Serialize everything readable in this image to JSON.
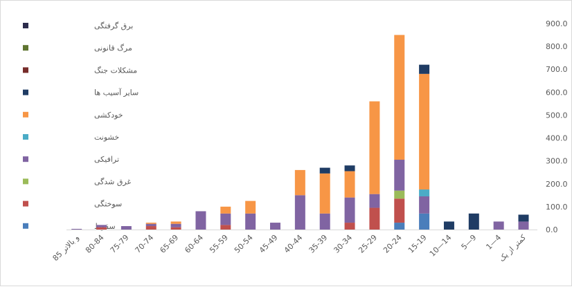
{
  "chart_data": {
    "type": "bar",
    "stacked": true,
    "title": "",
    "xlabel": "",
    "ylabel": "",
    "ylim": [
      0,
      900
    ],
    "y_ticks": [
      "0.0",
      "100.0",
      "200.0",
      "300.0",
      "400.0",
      "500.0",
      "600.0",
      "700.0",
      "800.0",
      "900.0"
    ],
    "grid": false,
    "legend_position": "left",
    "y_axis_side": "right",
    "categories": [
      "کمتر از یک",
      "1—4",
      "5—9",
      "10—14",
      "15-19",
      "20-24",
      "25-29",
      "30-34",
      "35-39",
      "40-44",
      "45-49",
      "50-54",
      "55-59",
      "60-64",
      "65-69",
      "70-74",
      "75-79",
      "80-84",
      "85 و بالاتر"
    ],
    "series": [
      {
        "name": "سقوط",
        "color": "#4a7ebb",
        "values": [
          0,
          0,
          0,
          0,
          70,
          30,
          0,
          0,
          0,
          0,
          0,
          0,
          0,
          0,
          0,
          0,
          0,
          0,
          0
        ]
      },
      {
        "name": "سوختگی",
        "color": "#c0504d",
        "values": [
          0,
          0,
          0,
          0,
          0,
          105,
          95,
          30,
          0,
          0,
          0,
          0,
          20,
          0,
          10,
          15,
          0,
          10,
          0
        ]
      },
      {
        "name": "غرق شدگی",
        "color": "#9bbb59",
        "values": [
          0,
          0,
          0,
          0,
          0,
          35,
          0,
          0,
          0,
          0,
          0,
          0,
          0,
          0,
          0,
          0,
          0,
          0,
          0
        ]
      },
      {
        "name": "ترافیکی",
        "color": "#8064a2",
        "values": [
          35,
          35,
          0,
          0,
          75,
          135,
          60,
          110,
          70,
          150,
          30,
          70,
          50,
          80,
          15,
          10,
          15,
          10,
          3
        ]
      },
      {
        "name": "خشونت",
        "color": "#4bacc6",
        "values": [
          0,
          0,
          0,
          0,
          30,
          0,
          0,
          0,
          0,
          0,
          0,
          0,
          0,
          0,
          0,
          0,
          0,
          0,
          0
        ]
      },
      {
        "name": "خودکشی",
        "color": "#f79646",
        "values": [
          0,
          0,
          0,
          0,
          505,
          545,
          405,
          115,
          175,
          110,
          0,
          55,
          30,
          0,
          10,
          5,
          0,
          0,
          0
        ]
      },
      {
        "name": "سایر آسیب ها",
        "color": "#1f3c64",
        "values": [
          30,
          0,
          70,
          35,
          40,
          0,
          0,
          25,
          25,
          0,
          0,
          0,
          0,
          0,
          0,
          0,
          0,
          0,
          0
        ]
      },
      {
        "name": "مشکلات جنگ",
        "color": "#772c2a",
        "values": [
          0,
          0,
          0,
          0,
          0,
          0,
          0,
          0,
          0,
          0,
          0,
          0,
          0,
          0,
          0,
          0,
          0,
          0,
          0
        ]
      },
      {
        "name": "مرگ قانونی",
        "color": "#5f7530",
        "values": [
          0,
          0,
          0,
          0,
          0,
          0,
          0,
          0,
          0,
          0,
          0,
          0,
          0,
          0,
          0,
          0,
          0,
          0,
          0
        ]
      },
      {
        "name": "برق گرفتگی",
        "color": "#2c2c4c",
        "values": [
          0,
          0,
          0,
          0,
          0,
          0,
          0,
          0,
          0,
          0,
          0,
          0,
          0,
          0,
          0,
          0,
          0,
          0,
          0
        ]
      }
    ]
  }
}
